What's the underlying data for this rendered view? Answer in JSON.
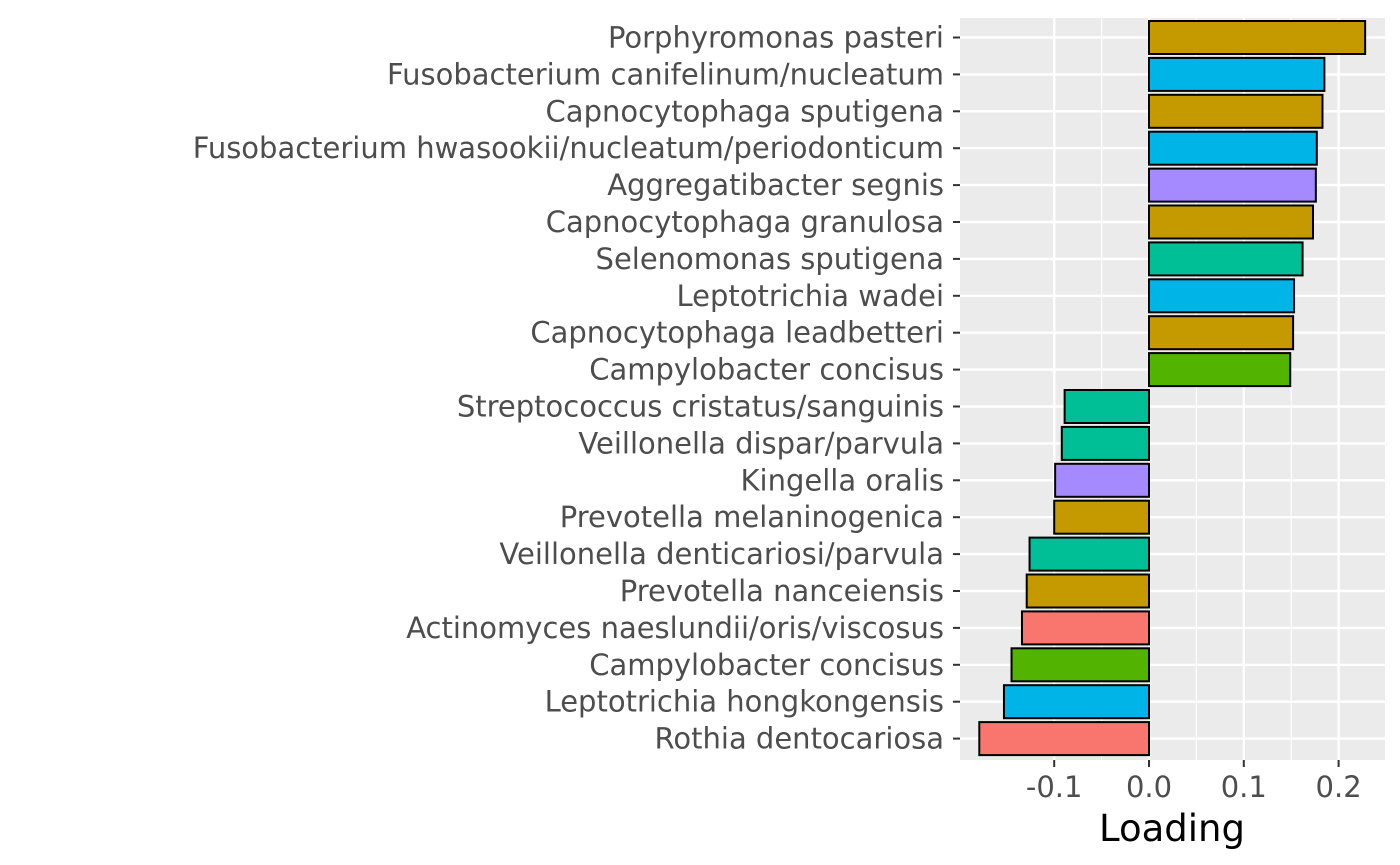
{
  "chart_data": {
    "type": "bar",
    "orientation": "horizontal",
    "title": "",
    "xlabel": "Loading",
    "ylabel": "",
    "xlim": [
      -0.2,
      0.245
    ],
    "xticks": [
      -0.1,
      0.0,
      0.1,
      0.2
    ],
    "xtick_labels": [
      "-0.1",
      "0.0",
      "0.1",
      "0.2"
    ],
    "grid": true,
    "legend": "none",
    "categories": [
      "Porphyromonas pasteri",
      "Fusobacterium canifelinum/nucleatum",
      "Capnocytophaga sputigena",
      "Fusobacterium hwasookii/nucleatum/periodonticum",
      "Aggregatibacter segnis",
      "Capnocytophaga granulosa",
      "Selenomonas sputigena",
      "Leptotrichia wadei",
      "Capnocytophaga leadbetteri",
      "Campylobacter concisus",
      "Streptococcus cristatus/sanguinis",
      "Veillonella dispar/parvula",
      "Kingella oralis",
      "Prevotella melaninogenica",
      "Veillonella denticariosi/parvula",
      "Prevotella nanceiensis",
      "Actinomyces naeslundii/oris/viscosus",
      "Campylobacter concisus",
      "Leptotrichia hongkongensis",
      "Rothia dentocariosa"
    ],
    "values": [
      0.228,
      0.185,
      0.183,
      0.177,
      0.176,
      0.173,
      0.162,
      0.153,
      0.152,
      0.149,
      -0.089,
      -0.092,
      -0.099,
      -0.1,
      -0.126,
      -0.129,
      -0.134,
      -0.145,
      -0.153,
      -0.179
    ],
    "colors": [
      "#C49A00",
      "#00B4E8",
      "#C49A00",
      "#00B4E8",
      "#A58AFF",
      "#C49A00",
      "#00BF96",
      "#00B4E8",
      "#C49A00",
      "#53B400",
      "#00BF96",
      "#00BF96",
      "#A58AFF",
      "#C49A00",
      "#00BF96",
      "#C49A00",
      "#F8766D",
      "#53B400",
      "#00B4E8",
      "#F8766D"
    ],
    "panel_background": "#EBEBEB",
    "gridline_color": "#FFFFFF",
    "bar_outline_color": "#000000"
  }
}
